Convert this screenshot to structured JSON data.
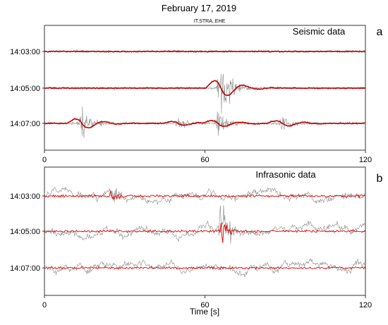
{
  "figure": {
    "title": "February 17, 2019",
    "subtitle": "IT.STRA..EHE",
    "xlabel": "Time [s]"
  },
  "chart_data": [
    {
      "type": "line",
      "panel_letter": "a",
      "panel_title": "Seismic data",
      "xlim": [
        0,
        120
      ],
      "x_ticks": [
        "0",
        "60",
        "120"
      ],
      "traces": [
        {
          "time_label": "14:03:00",
          "events": []
        },
        {
          "time_label": "14:05:00",
          "events": [
            {
              "t": 66,
              "strength": 1.0
            }
          ]
        },
        {
          "time_label": "14:07:00",
          "events": [
            {
              "t": 14,
              "strength": 0.6
            },
            {
              "t": 50,
              "strength": 0.25
            },
            {
              "t": 65,
              "strength": 0.4
            },
            {
              "t": 89,
              "strength": 0.35
            }
          ]
        }
      ],
      "colors": {
        "raw": "#8a8a8a",
        "envelope": "#c00000"
      }
    },
    {
      "type": "line",
      "panel_letter": "b",
      "panel_title": "Infrasonic data",
      "xlim": [
        0,
        120
      ],
      "x_ticks": [
        "0",
        "60",
        "120"
      ],
      "traces": [
        {
          "time_label": "14:03:00",
          "events": [
            {
              "t": 25,
              "strength": 0.5
            }
          ]
        },
        {
          "time_label": "14:05:00",
          "events": [
            {
              "t": 66,
              "strength": 1.0
            }
          ]
        },
        {
          "time_label": "14:07:00",
          "events": []
        }
      ],
      "colors": {
        "raw": "#8a8a8a",
        "filtered": "#e00000"
      }
    }
  ]
}
